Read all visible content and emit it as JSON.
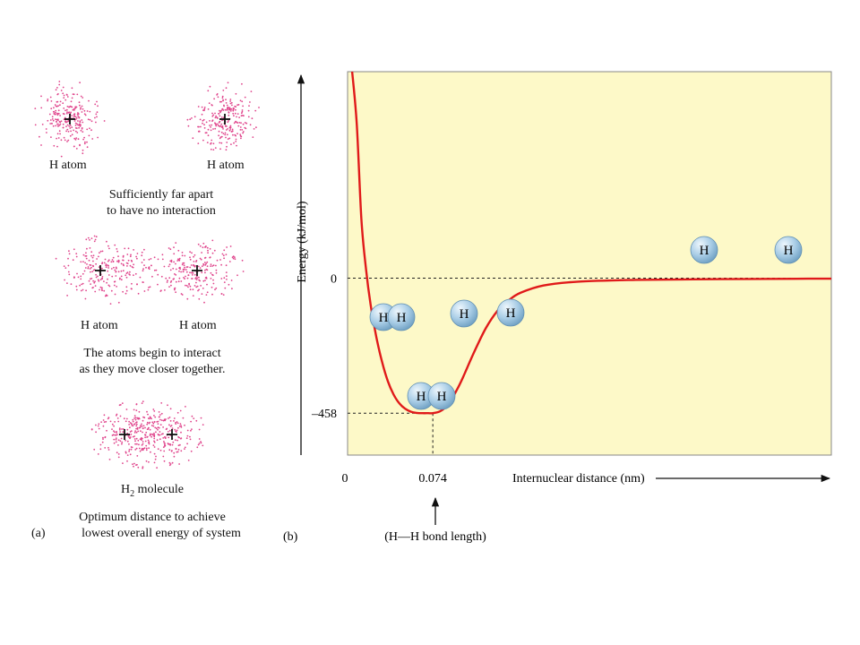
{
  "panel_a": {
    "label": "(a)",
    "stage1": {
      "atom_left": "H atom",
      "atom_right": "H atom",
      "caption_1": "Sufficiently far apart",
      "caption_2": "to have no interaction"
    },
    "stage2": {
      "atom_left": "H atom",
      "atom_right": "H atom",
      "caption_1": "The atoms begin to interact",
      "caption_2": "as they move closer together."
    },
    "stage3": {
      "molecule_prefix": "H",
      "molecule_sub": "2",
      "molecule_suffix": " molecule",
      "caption_1": "Optimum distance to achieve",
      "caption_2": "lowest overall energy of system"
    }
  },
  "panel_b": {
    "label": "(b)",
    "y_axis_label": "Energy (kJ/mol)",
    "x_axis_label": "Internuclear distance (nm)",
    "tick_y_zero": "0",
    "tick_y_min": "–458",
    "tick_x_zero": "0",
    "tick_x_bond": "0.074",
    "bond_length_note": "(H—H bond length)",
    "atom_symbol": "H",
    "colors": {
      "plot_bg": "#fdf9c8",
      "curve": "#e01a1a",
      "atom_fill": "#a9cde6",
      "electron": "#e0458c"
    }
  },
  "chart_data": {
    "type": "line",
    "title": "",
    "xlabel": "Internuclear distance (nm)",
    "ylabel": "Energy (kJ/mol)",
    "x_ticks": [
      0,
      0.074
    ],
    "y_ticks": [
      0,
      -458
    ],
    "xlim": [
      0,
      0.42
    ],
    "ylim": [
      -600,
      700
    ],
    "grid": false,
    "series": [
      {
        "x": [
          0.004,
          0.008,
          0.012,
          0.016,
          0.02,
          0.025,
          0.03,
          0.035,
          0.04,
          0.045,
          0.05,
          0.055,
          0.06,
          0.065,
          0.07,
          0.074,
          0.08,
          0.085,
          0.09,
          0.095,
          0.1,
          0.11,
          0.12,
          0.13,
          0.14,
          0.15,
          0.17,
          0.2,
          0.25,
          0.3,
          0.35,
          0.4,
          0.42
        ],
        "y": [
          700,
          520,
          200,
          30,
          -90,
          -200,
          -285,
          -350,
          -395,
          -425,
          -443,
          -453,
          -457,
          -458,
          -458,
          -458,
          -452,
          -438,
          -412,
          -378,
          -338,
          -250,
          -170,
          -112,
          -75,
          -50,
          -25,
          -12,
          -6,
          -4,
          -3,
          -2,
          -2
        ]
      }
    ],
    "annotations": [
      "H atom",
      "H atom",
      "H2 molecule",
      "(H—H bond length)"
    ]
  }
}
